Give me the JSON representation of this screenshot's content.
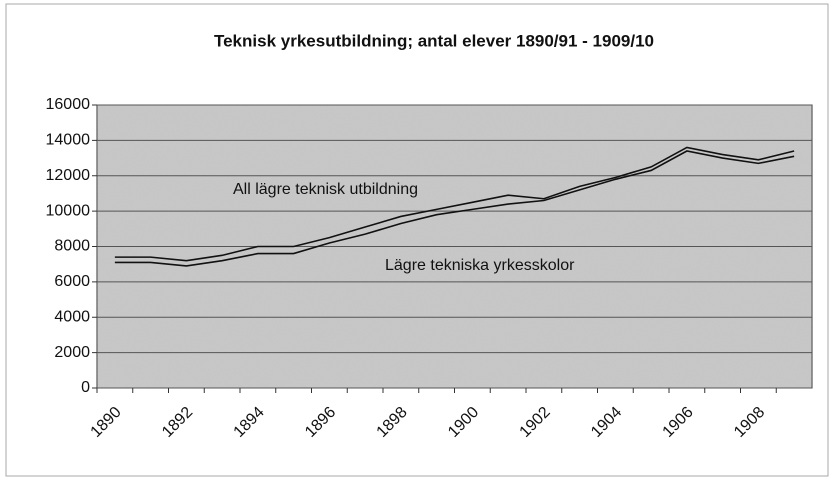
{
  "chart_data": {
    "type": "line",
    "title": "Teknisk yrkesutbildning; antal elever 1890/91 - 1909/10",
    "categories": [
      "1890",
      null,
      "1892",
      null,
      "1894",
      null,
      "1896",
      null,
      "1898",
      null,
      "1900",
      null,
      "1902",
      null,
      "1904",
      null,
      "1906",
      null,
      "1908",
      null
    ],
    "series": [
      {
        "name": "All lägre teknisk utbildning",
        "color": "#111111",
        "values": [
          7400,
          7400,
          7200,
          7500,
          8000,
          8000,
          8500,
          9100,
          9700,
          10100,
          10500,
          10900,
          10700,
          11400,
          11900,
          12500,
          13600,
          13200,
          12900,
          13400
        ]
      },
      {
        "name": "Lägre tekniska yrkesskolor",
        "color": "#111111",
        "values": [
          7100,
          7100,
          6900,
          7200,
          7600,
          7600,
          8200,
          8700,
          9300,
          9800,
          10100,
          10400,
          10600,
          11200,
          11800,
          12300,
          13400,
          13000,
          12700,
          13100
        ]
      }
    ],
    "ylim": [
      0,
      16000
    ],
    "yticks": [
      0,
      2000,
      4000,
      6000,
      8000,
      10000,
      12000,
      14000,
      16000
    ],
    "grid": true
  }
}
